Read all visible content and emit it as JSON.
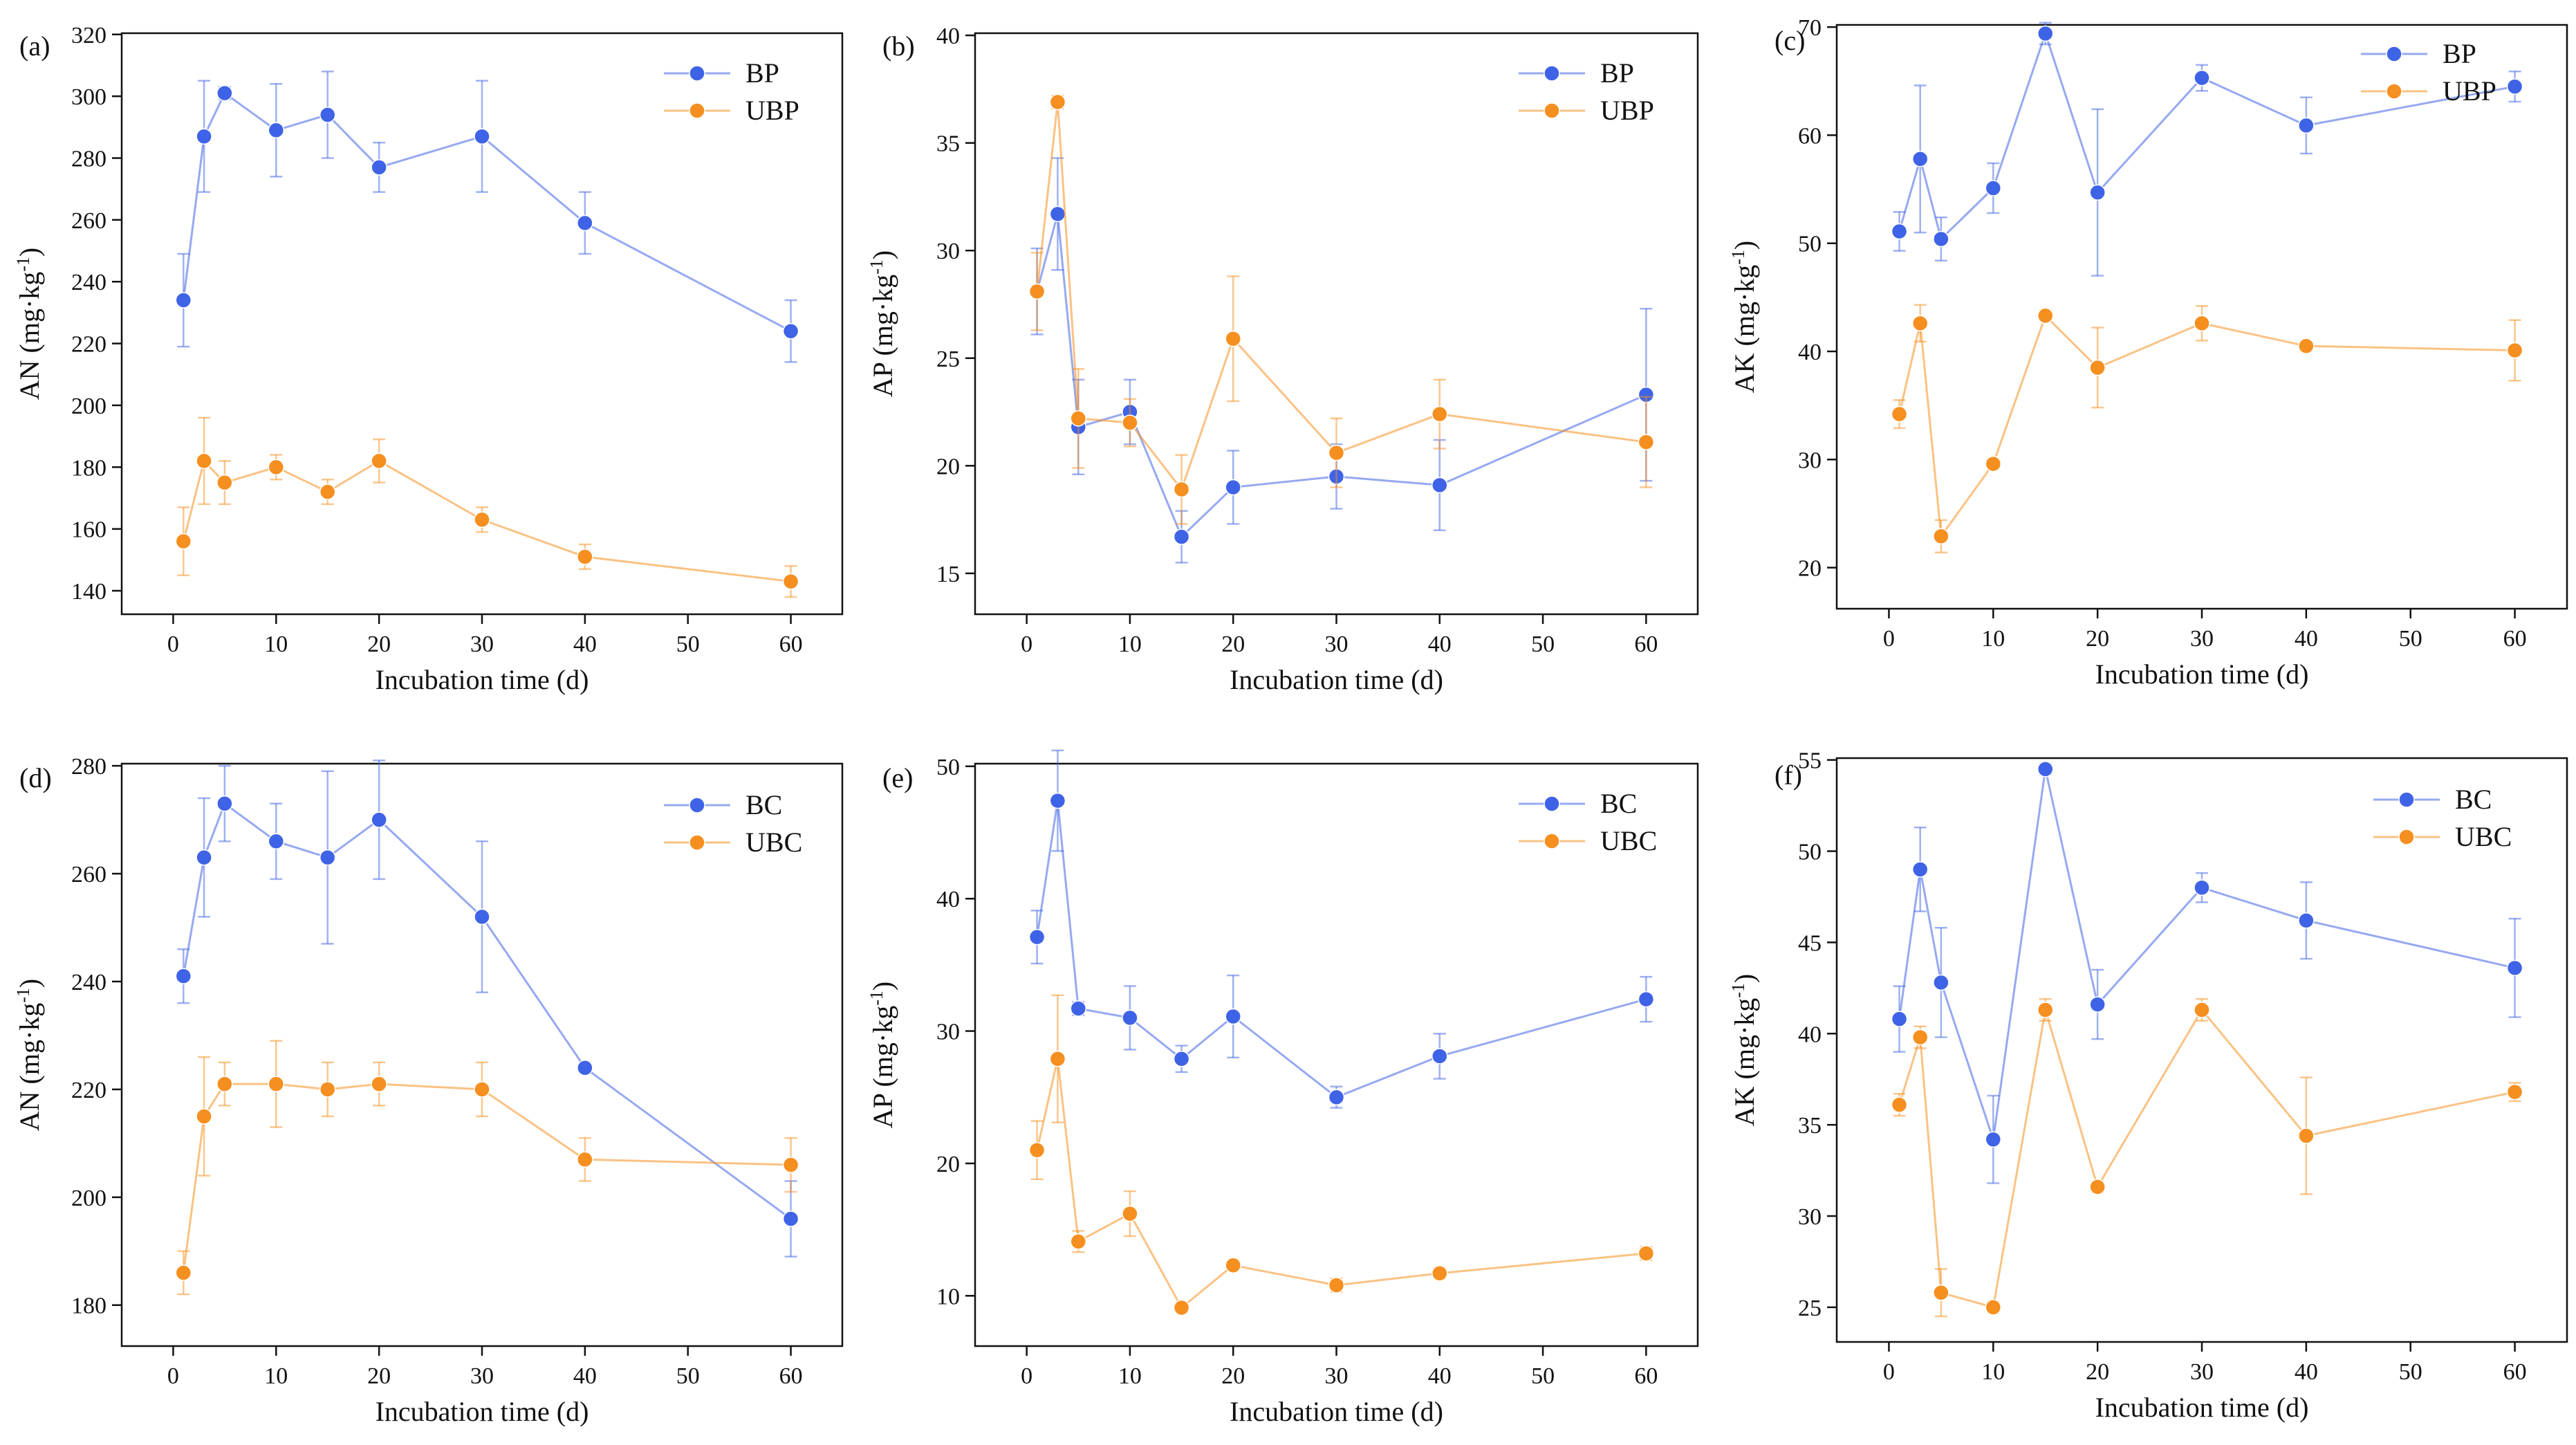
{
  "colors": {
    "blue": "#3f63e6",
    "orange": "#f58f1f"
  },
  "charts": [
    {
      "panel": "(a)",
      "xlabel": "Incubation time (d)",
      "ylabel": "AN (mg·kg",
      "ylabel_sup": "-1",
      "ylabel_close": ")",
      "x_ticks": [
        0,
        10,
        20,
        30,
        40,
        50,
        60
      ],
      "y_ticks": [
        140,
        160,
        180,
        200,
        220,
        240,
        260,
        280,
        300,
        320
      ],
      "x": [
        1,
        3,
        5,
        10,
        15,
        20,
        30,
        40,
        60
      ],
      "series": [
        {
          "name": "BP",
          "color": "blue",
          "values": [
            234,
            287,
            301,
            289,
            294,
            277,
            287,
            259,
            224
          ],
          "errors": [
            15,
            18,
            2,
            15,
            14,
            8,
            18,
            10,
            10
          ]
        },
        {
          "name": "UBP",
          "color": "orange",
          "values": [
            156,
            182,
            175,
            180,
            172,
            182,
            163,
            151,
            143
          ],
          "errors": [
            11,
            14,
            7,
            4,
            4,
            7,
            4,
            4,
            5
          ]
        }
      ]
    },
    {
      "panel": "(b)",
      "xlabel": "Incubation time (d)",
      "ylabel": "AP (mg·kg",
      "ylabel_sup": "-1",
      "ylabel_close": ")",
      "x_ticks": [
        0,
        10,
        20,
        30,
        40,
        50,
        60
      ],
      "y_ticks": [
        15,
        20,
        25,
        30,
        35,
        40
      ],
      "x": [
        1,
        3,
        5,
        10,
        15,
        20,
        30,
        40,
        60
      ],
      "series": [
        {
          "name": "BP",
          "color": "blue",
          "values": [
            28.1,
            31.7,
            21.8,
            22.5,
            16.7,
            19.0,
            19.5,
            19.1,
            23.3
          ],
          "errors": [
            2.0,
            2.6,
            2.2,
            1.5,
            1.2,
            1.7,
            1.5,
            2.1,
            4.0
          ]
        },
        {
          "name": "UBP",
          "color": "orange",
          "values": [
            28.1,
            36.9,
            22.2,
            22.0,
            18.9,
            25.9,
            20.6,
            22.4,
            21.1
          ],
          "errors": [
            1.8,
            0.3,
            2.3,
            1.1,
            1.6,
            2.9,
            1.6,
            1.6,
            2.1
          ]
        }
      ]
    },
    {
      "panel": "(c)",
      "xlabel": "Incubation time (d)",
      "ylabel": "AK (mg·kg",
      "ylabel_sup": "-1",
      "ylabel_close": ")",
      "x_ticks": [
        0,
        10,
        20,
        30,
        40,
        50,
        60
      ],
      "y_ticks": [
        20,
        30,
        40,
        50,
        60,
        70
      ],
      "x": [
        1,
        3,
        5,
        10,
        15,
        20,
        30,
        40,
        60
      ],
      "series": [
        {
          "name": "BP",
          "color": "blue",
          "values": [
            51.1,
            57.8,
            50.4,
            55.1,
            69.4,
            54.7,
            65.3,
            60.9,
            64.5
          ],
          "errors": [
            1.8,
            6.8,
            2.0,
            2.3,
            1.0,
            7.7,
            1.2,
            2.6,
            1.4
          ]
        },
        {
          "name": "UBP",
          "color": "orange",
          "values": [
            34.2,
            42.6,
            22.9,
            29.6,
            43.3,
            38.5,
            42.6,
            40.5,
            40.1
          ],
          "errors": [
            1.3,
            1.7,
            1.5,
            0.5,
            0.5,
            3.7,
            1.6,
            0.3,
            2.8
          ]
        }
      ]
    },
    {
      "panel": "(d)",
      "xlabel": "Incubation time (d)",
      "ylabel": "AN (mg·kg",
      "ylabel_sup": "-1",
      "ylabel_close": ")",
      "x_ticks": [
        0,
        10,
        20,
        30,
        40,
        50,
        60
      ],
      "y_ticks": [
        180,
        200,
        220,
        240,
        260,
        280
      ],
      "x": [
        1,
        3,
        5,
        10,
        15,
        20,
        30,
        40,
        60
      ],
      "series": [
        {
          "name": "BC",
          "color": "blue",
          "values": [
            241,
            263,
            273,
            266,
            263,
            270,
            252,
            224,
            196
          ],
          "errors": [
            5,
            11,
            7,
            7,
            16,
            11,
            14,
            1,
            7
          ]
        },
        {
          "name": "UBC",
          "color": "orange",
          "values": [
            186,
            215,
            221,
            221,
            220,
            221,
            220,
            207,
            206
          ],
          "errors": [
            4,
            11,
            4,
            8,
            5,
            4,
            5,
            4,
            5
          ]
        }
      ]
    },
    {
      "panel": "(e)",
      "xlabel": "Incubation time (d)",
      "ylabel": "AP (mg·kg",
      "ylabel_sup": "-1",
      "ylabel_close": ")",
      "x_ticks": [
        0,
        10,
        20,
        30,
        40,
        50,
        60
      ],
      "y_ticks": [
        10,
        20,
        30,
        40,
        50
      ],
      "x": [
        1,
        3,
        5,
        10,
        15,
        20,
        30,
        40,
        60
      ],
      "series": [
        {
          "name": "BC",
          "color": "blue",
          "values": [
            37.1,
            47.4,
            31.7,
            31.0,
            27.9,
            31.1,
            25.0,
            28.1,
            32.4
          ],
          "errors": [
            2.0,
            3.8,
            0.5,
            2.4,
            1.0,
            3.1,
            0.8,
            1.7,
            1.7
          ]
        },
        {
          "name": "UBC",
          "color": "orange",
          "values": [
            21.0,
            27.9,
            14.1,
            16.2,
            9.1,
            12.3,
            10.8,
            11.7,
            13.2
          ],
          "errors": [
            2.2,
            4.8,
            0.8,
            1.7,
            0.4,
            0.4,
            0.5,
            0.4,
            0.5
          ]
        }
      ]
    },
    {
      "panel": "(f)",
      "xlabel": "Incubation time (d)",
      "ylabel": "AK (mg·kg",
      "ylabel_sup": "-1",
      "ylabel_close": ")",
      "x_ticks": [
        0,
        10,
        20,
        30,
        40,
        50,
        60
      ],
      "y_ticks": [
        25,
        30,
        35,
        40,
        45,
        50,
        55
      ],
      "x": [
        1,
        3,
        5,
        10,
        15,
        20,
        30,
        40,
        60
      ],
      "series": [
        {
          "name": "BC",
          "color": "blue",
          "values": [
            40.8,
            49.0,
            42.8,
            34.2,
            54.5,
            41.6,
            48.0,
            46.2,
            43.6
          ],
          "errors": [
            1.8,
            2.3,
            3.0,
            2.4,
            0.3,
            1.9,
            0.8,
            2.1,
            2.7
          ]
        },
        {
          "name": "UBC",
          "color": "orange",
          "values": [
            36.1,
            39.8,
            25.8,
            25.0,
            41.3,
            31.6,
            41.3,
            34.4,
            36.8
          ],
          "errors": [
            0.6,
            0.6,
            1.3,
            0.3,
            0.6,
            0.3,
            0.6,
            3.2,
            0.5
          ]
        }
      ]
    }
  ]
}
